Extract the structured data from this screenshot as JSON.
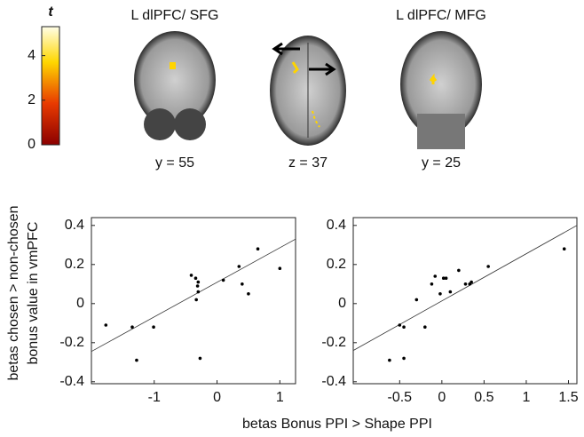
{
  "figure": {
    "xlabel": "betas Bonus PPI > Shape PPI",
    "ylabel": [
      "betas chosen > non-chosen",
      "bonus value in vmPFC"
    ]
  },
  "colorbar": {
    "label": "t",
    "lim": [
      0,
      5.3
    ],
    "ticks": [
      0,
      2,
      4
    ]
  },
  "brain_panels": [
    {
      "title": "L dlPFC/ SFG",
      "coordinate": "y = 55"
    },
    {
      "coordinate": "z = 37"
    },
    {
      "title": "L dlPFC/ MFG",
      "coordinate": "y = 25"
    }
  ],
  "chart_data": [
    {
      "type": "scatter",
      "color": "#000000",
      "x": [
        -1.77,
        -1.35,
        -1.28,
        -1.01,
        -0.41,
        -0.34,
        -0.3,
        -0.31,
        -0.3,
        -0.33,
        -0.27,
        0.1,
        0.35,
        0.4,
        0.5,
        0.65,
        1.0
      ],
      "values": [
        -0.11,
        -0.12,
        -0.29,
        -0.12,
        0.145,
        0.13,
        0.11,
        0.09,
        0.06,
        0.02,
        -0.28,
        0.12,
        0.19,
        0.1,
        0.05,
        0.28,
        0.18
      ],
      "fit": {
        "x": [
          -2,
          1.25
        ],
        "values": [
          -0.245,
          0.33
        ]
      },
      "xlim": [
        -2,
        1.25
      ],
      "ylim": [
        -0.41,
        0.44
      ],
      "xticks": [
        -1,
        0,
        1
      ],
      "yticks": [
        -0.4,
        -0.2,
        0,
        0.2,
        0.4
      ]
    },
    {
      "type": "scatter",
      "color": "#000000",
      "x": [
        -0.62,
        -0.5,
        -0.45,
        -0.45,
        -0.3,
        -0.2,
        -0.12,
        -0.08,
        -0.02,
        0.02,
        0.05,
        0.1,
        0.2,
        0.28,
        0.33,
        0.35,
        0.55,
        1.45
      ],
      "values": [
        -0.29,
        -0.11,
        -0.12,
        -0.28,
        0.02,
        -0.12,
        0.1,
        0.14,
        0.05,
        0.13,
        0.13,
        0.06,
        0.17,
        0.1,
        0.1,
        0.11,
        0.19,
        0.28
      ],
      "fit": {
        "x": [
          -1.05,
          1.6
        ],
        "values": [
          -0.24,
          0.4
        ]
      },
      "xlim": [
        -1.05,
        1.6
      ],
      "ylim": [
        -0.41,
        0.44
      ],
      "xticks": [
        -0.5,
        0,
        0.5,
        1,
        1.5
      ],
      "yticks": [
        -0.4,
        -0.2,
        0,
        0.2,
        0.4
      ]
    }
  ]
}
